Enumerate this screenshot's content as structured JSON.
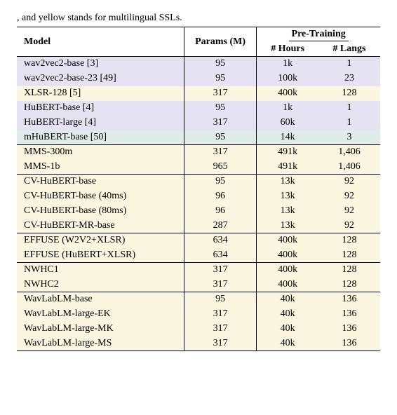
{
  "caption_fragment": ", and yellow stands for multilingual SSLs.",
  "colors": {
    "purple": "#e5e2f1",
    "yellow": "#faf6df",
    "teal": "#dfeceb",
    "white": "#ffffff"
  },
  "header": {
    "model": "Model",
    "params": "Params (M)",
    "pretrain": "Pre-Training",
    "hours": "# Hours",
    "langs": "# Langs"
  },
  "groups": [
    {
      "sep": true,
      "rows": [
        {
          "bg": "purple",
          "model": "wav2vec2-base [3]",
          "params": "95",
          "hours": "1k",
          "langs": "1"
        },
        {
          "bg": "purple",
          "model": "wav2vec2-base-23 [49]",
          "params": "95",
          "hours": "100k",
          "langs": "23"
        },
        {
          "bg": "yellow",
          "model": "XLSR-128 [5]",
          "params": "317",
          "hours": "400k",
          "langs": "128"
        },
        {
          "bg": "purple",
          "model": "HuBERT-base [4]",
          "params": "95",
          "hours": "1k",
          "langs": "1"
        },
        {
          "bg": "purple",
          "model": "HuBERT-large [4]",
          "params": "317",
          "hours": "60k",
          "langs": "1"
        },
        {
          "bg": "teal",
          "model": "mHuBERT-base [50]",
          "params": "95",
          "hours": "14k",
          "langs": "3"
        }
      ]
    },
    {
      "sep": true,
      "bg_group": "yellow",
      "rows": [
        {
          "bg": "yellow",
          "model": "MMS-300m",
          "params": "317",
          "hours": "491k",
          "langs": "1,406"
        },
        {
          "bg": "yellow",
          "model": "MMS-1b",
          "params": "965",
          "hours": "491k",
          "langs": "1,406"
        }
      ]
    },
    {
      "sep": true,
      "bg_group": "yellow",
      "rows": [
        {
          "bg": "yellow",
          "model": "CV-HuBERT-base",
          "params": "95",
          "hours": "13k",
          "langs": "92"
        },
        {
          "bg": "yellow",
          "model": "CV-HuBERT-base (40ms)",
          "params": "96",
          "hours": "13k",
          "langs": "92"
        },
        {
          "bg": "yellow",
          "model": "CV-HuBERT-base (80ms)",
          "params": "96",
          "hours": "13k",
          "langs": "92"
        },
        {
          "bg": "yellow",
          "model": "CV-HuBERT-MR-base",
          "params": "287",
          "hours": "13k",
          "langs": "92"
        }
      ]
    },
    {
      "sep": true,
      "bg_group": "yellow",
      "rows": [
        {
          "bg": "yellow",
          "model": "EFFUSE (W2V2+XLSR)",
          "params": "634",
          "hours": "400k",
          "langs": "128"
        },
        {
          "bg": "yellow",
          "model": "EFFUSE (HuBERT+XLSR)",
          "params": "634",
          "hours": "400k",
          "langs": "128"
        }
      ]
    },
    {
      "sep": true,
      "bg_group": "yellow",
      "rows": [
        {
          "bg": "yellow",
          "model": "NWHC1",
          "params": "317",
          "hours": "400k",
          "langs": "128"
        },
        {
          "bg": "yellow",
          "model": "NWHC2",
          "params": "317",
          "hours": "400k",
          "langs": "128"
        }
      ]
    },
    {
      "sep": true,
      "bg_group": "yellow",
      "rows": [
        {
          "bg": "yellow",
          "model": "WavLabLM-base",
          "params": "95",
          "hours": "40k",
          "langs": "136"
        },
        {
          "bg": "yellow",
          "model": "WavLabLM-large-EK",
          "params": "317",
          "hours": "40k",
          "langs": "136"
        },
        {
          "bg": "yellow",
          "model": "WavLabLM-large-MK",
          "params": "317",
          "hours": "40k",
          "langs": "136"
        },
        {
          "bg": "yellow",
          "model": "WavLabLM-large-MS",
          "params": "317",
          "hours": "40k",
          "langs": "136"
        }
      ]
    }
  ]
}
